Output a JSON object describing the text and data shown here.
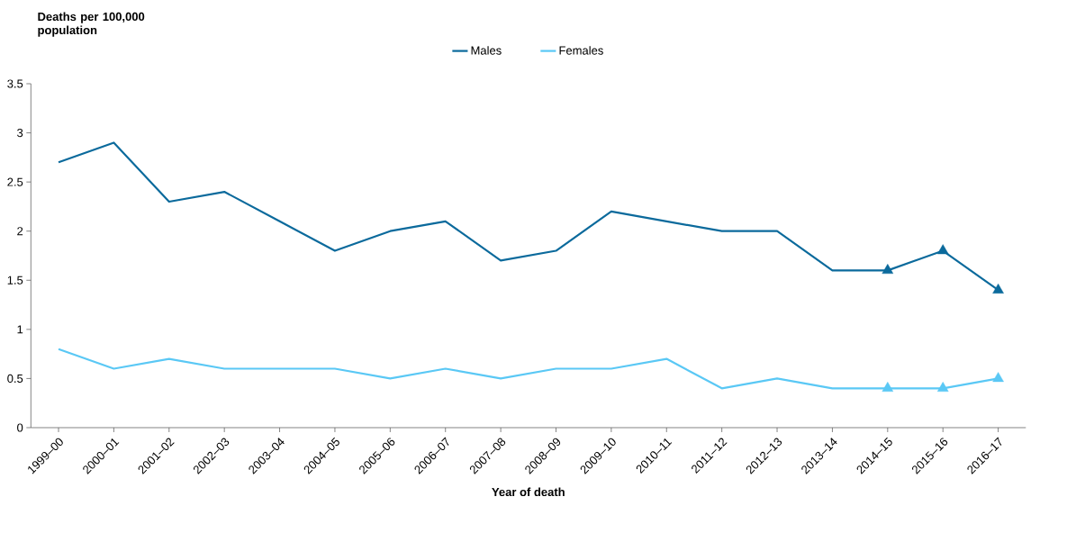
{
  "chart_data": {
    "type": "line",
    "ylabel": "Deaths per 100,000 population",
    "xlabel": "Year of death",
    "categories": [
      "1999–00",
      "2000–01",
      "2001–02",
      "2002–03",
      "2003–04",
      "2004–05",
      "2005–06",
      "2006–07",
      "2007–08",
      "2008–09",
      "2009–10",
      "2010–11",
      "2011–12",
      "2012–13",
      "2013–14",
      "2014–15",
      "2015–16",
      "2016–17"
    ],
    "series": [
      {
        "name": "Males",
        "color": "#0b6a9c",
        "values": [
          2.7,
          2.9,
          2.3,
          2.4,
          2.1,
          1.8,
          2.0,
          2.1,
          1.7,
          1.8,
          2.2,
          2.1,
          2.0,
          2.0,
          1.6,
          1.6,
          1.8,
          1.4
        ]
      },
      {
        "name": "Females",
        "color": "#5ac8f5",
        "values": [
          0.8,
          0.6,
          0.7,
          0.6,
          0.6,
          0.6,
          0.5,
          0.6,
          0.5,
          0.6,
          0.6,
          0.7,
          0.4,
          0.5,
          0.4,
          0.4,
          0.4,
          0.5
        ]
      },
      {
        "type": "scatter",
        "marker": "triangle",
        "color": "#0b6a9c",
        "x": [
          "2014–15",
          "2015–16",
          "2016–17"
        ],
        "values": [
          1.6,
          1.8,
          1.4
        ]
      },
      {
        "type": "scatter",
        "marker": "triangle",
        "color": "#5ac8f5",
        "x": [
          "2014–15",
          "2015–16",
          "2016–17"
        ],
        "values": [
          0.4,
          0.4,
          0.5
        ]
      }
    ],
    "ylim": [
      0,
      3.5
    ],
    "yticks": [
      0,
      0.5,
      1,
      1.5,
      2,
      2.5,
      3,
      3.5
    ],
    "grid": false,
    "legend": "top",
    "marker": "none",
    "line_style": "solid"
  }
}
